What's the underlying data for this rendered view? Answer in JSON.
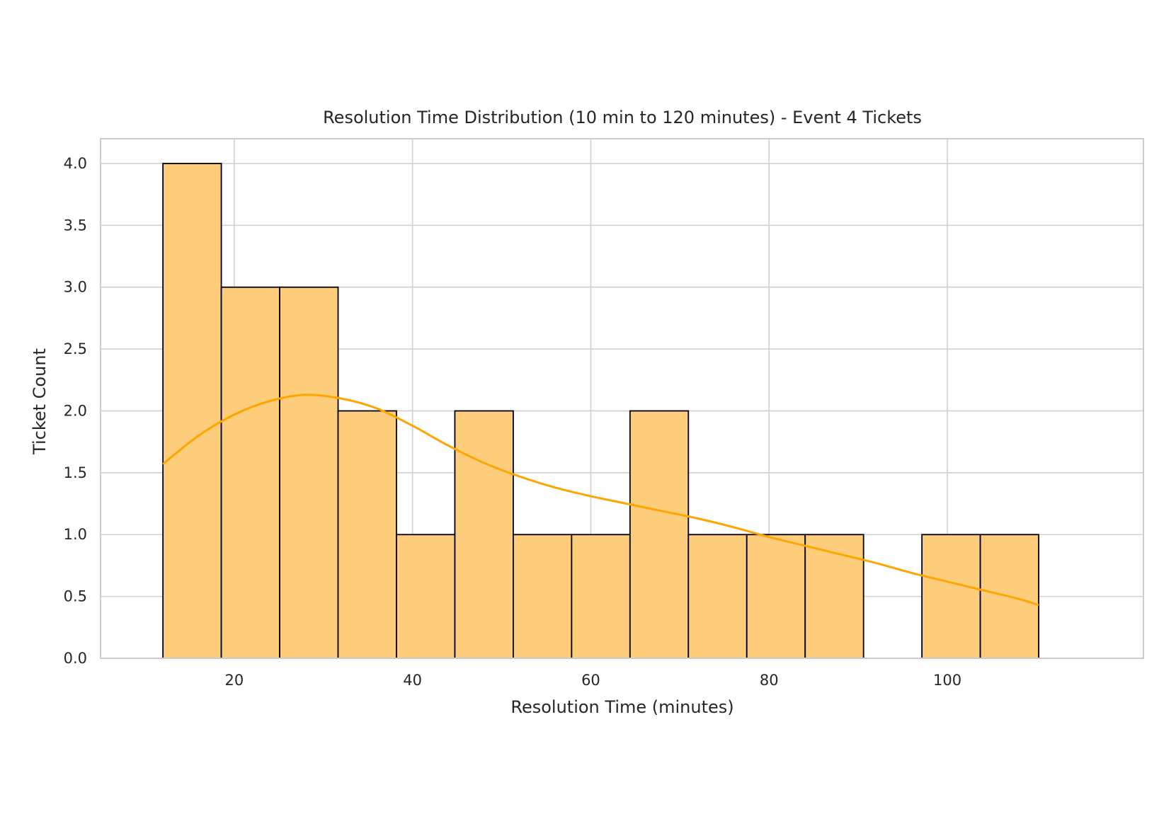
{
  "chart_data": {
    "type": "bar",
    "subtype": "histogram_with_kde",
    "title": "Resolution Time Distribution (10 min to 120 minutes) - Event 4 Tickets",
    "xlabel": "Resolution Time (minutes)",
    "ylabel": "Ticket Count",
    "xlim": [
      5,
      122
    ],
    "ylim": [
      0,
      4.2
    ],
    "xticks": [
      20,
      40,
      60,
      80,
      100
    ],
    "yticks": [
      0.0,
      0.5,
      1.0,
      1.5,
      2.0,
      2.5,
      3.0,
      3.5,
      4.0
    ],
    "xtick_labels": [
      "20",
      "40",
      "60",
      "80",
      "100"
    ],
    "ytick_labels": [
      "0.0",
      "0.5",
      "1.0",
      "1.5",
      "2.0",
      "2.5",
      "3.0",
      "3.5",
      "4.0"
    ],
    "grid": true,
    "legend": "none",
    "bins": [
      {
        "x0": 12.0,
        "x1": 18.55,
        "count": 4
      },
      {
        "x0": 18.55,
        "x1": 25.1,
        "count": 3
      },
      {
        "x0": 25.1,
        "x1": 31.65,
        "count": 3
      },
      {
        "x0": 31.65,
        "x1": 38.2,
        "count": 2
      },
      {
        "x0": 38.2,
        "x1": 44.75,
        "count": 1
      },
      {
        "x0": 44.75,
        "x1": 51.3,
        "count": 2
      },
      {
        "x0": 51.3,
        "x1": 57.85,
        "count": 1
      },
      {
        "x0": 57.85,
        "x1": 64.4,
        "count": 1
      },
      {
        "x0": 64.4,
        "x1": 70.95,
        "count": 2
      },
      {
        "x0": 70.95,
        "x1": 77.5,
        "count": 1
      },
      {
        "x0": 77.5,
        "x1": 84.05,
        "count": 1
      },
      {
        "x0": 84.05,
        "x1": 90.6,
        "count": 1
      },
      {
        "x0": 90.6,
        "x1": 97.15,
        "count": 0
      },
      {
        "x0": 97.15,
        "x1": 103.7,
        "count": 1
      },
      {
        "x0": 103.7,
        "x1": 110.25,
        "count": 1
      }
    ],
    "kde": {
      "x": [
        12,
        16,
        20,
        24,
        28,
        32,
        36,
        40,
        44,
        48,
        52,
        56,
        60,
        64,
        68,
        72,
        76,
        80,
        84,
        88,
        92,
        96,
        100,
        104,
        108,
        110.25
      ],
      "y": [
        1.57,
        1.8,
        1.97,
        2.08,
        2.13,
        2.1,
        2.02,
        1.88,
        1.72,
        1.58,
        1.47,
        1.38,
        1.31,
        1.25,
        1.19,
        1.13,
        1.06,
        0.98,
        0.91,
        0.84,
        0.77,
        0.69,
        0.62,
        0.55,
        0.48,
        0.43
      ]
    },
    "colors": {
      "bar_fill": "#fdcd7b",
      "bar_edge": "#000000",
      "kde_line": "#ffa500",
      "grid": "#d0d0d0",
      "spine": "#cccccc"
    }
  }
}
